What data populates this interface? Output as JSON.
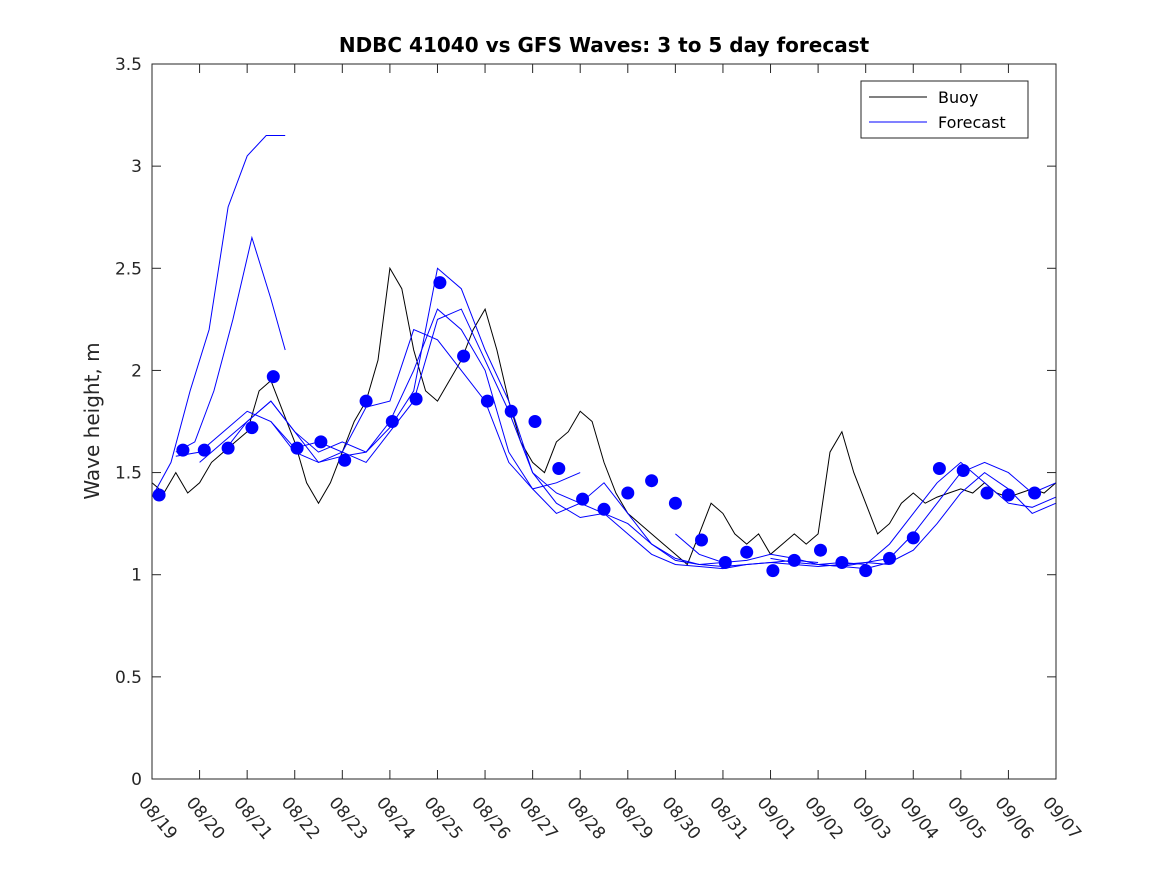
{
  "chart_data": {
    "type": "line",
    "title": "NDBC 41040 vs GFS Waves: 3 to 5 day forecast",
    "xlabel": "",
    "ylabel": "Wave height, m",
    "xlim": [
      0,
      19
    ],
    "ylim": [
      0,
      3.5
    ],
    "yticks": [
      0,
      0.5,
      1,
      1.5,
      2,
      2.5,
      3,
      3.5
    ],
    "ytick_labels": [
      "0",
      "0.5",
      "1",
      "1.5",
      "2",
      "2.5",
      "3",
      "3.5"
    ],
    "xtick_labels": [
      "08/19",
      "08/20",
      "08/21",
      "08/22",
      "08/23",
      "08/24",
      "08/25",
      "08/26",
      "08/27",
      "08/28",
      "08/29",
      "08/30",
      "08/31",
      "09/01",
      "09/02",
      "09/03",
      "09/04",
      "09/05",
      "09/06",
      "09/07"
    ],
    "legend": {
      "position": "top-right",
      "entries": [
        {
          "name": "Buoy",
          "color": "#000000"
        },
        {
          "name": "Forecast",
          "color": "#0000ff"
        }
      ]
    },
    "colors": {
      "buoy": "#000000",
      "forecast": "#0000ff",
      "axis": "#262626"
    },
    "buoy": {
      "name": "Buoy",
      "x": [
        0,
        0.25,
        0.5,
        0.75,
        1,
        1.25,
        1.5,
        1.75,
        2,
        2.25,
        2.5,
        2.75,
        3,
        3.25,
        3.5,
        3.75,
        4,
        4.25,
        4.5,
        4.75,
        5,
        5.25,
        5.5,
        5.75,
        6,
        6.25,
        6.5,
        6.75,
        7,
        7.25,
        7.5,
        7.75,
        8,
        8.25,
        8.5,
        8.75,
        9,
        9.25,
        9.5,
        9.75,
        10,
        10.25,
        10.5,
        10.75,
        11,
        11.25,
        11.5,
        11.75,
        12,
        12.25,
        12.5,
        12.75,
        13,
        13.25,
        13.5,
        13.75,
        14,
        14.25,
        14.5,
        14.75,
        15,
        15.25,
        15.5,
        15.75,
        16,
        16.25,
        16.5,
        16.75,
        17,
        17.25,
        17.5,
        17.75,
        18,
        18.25,
        18.5,
        18.75,
        19
      ],
      "y": [
        1.45,
        1.4,
        1.5,
        1.4,
        1.45,
        1.55,
        1.6,
        1.65,
        1.7,
        1.9,
        1.95,
        1.8,
        1.65,
        1.45,
        1.35,
        1.45,
        1.6,
        1.75,
        1.85,
        2.05,
        2.5,
        2.4,
        2.1,
        1.9,
        1.85,
        1.95,
        2.05,
        2.2,
        2.3,
        2.1,
        1.85,
        1.65,
        1.55,
        1.5,
        1.65,
        1.7,
        1.8,
        1.75,
        1.55,
        1.4,
        1.3,
        1.25,
        1.2,
        1.15,
        1.1,
        1.05,
        1.2,
        1.35,
        1.3,
        1.2,
        1.15,
        1.2,
        1.1,
        1.15,
        1.2,
        1.15,
        1.2,
        1.6,
        1.7,
        1.5,
        1.35,
        1.2,
        1.25,
        1.35,
        1.4,
        1.35,
        1.38,
        1.4,
        1.42,
        1.4,
        1.45,
        1.4,
        1.38,
        1.4,
        1.42,
        1.4,
        1.45
      ]
    },
    "forecast_series": [
      {
        "name": "Forecast",
        "x": [
          0,
          0.4,
          0.8,
          1.2,
          1.6,
          2,
          2.4,
          2.8
        ],
        "y": [
          1.38,
          1.55,
          1.9,
          2.2,
          2.8,
          3.05,
          3.15,
          3.15
        ]
      },
      {
        "name": "Forecast",
        "x": [
          0.5,
          0.9,
          1.3,
          1.7,
          2.1,
          2.5,
          2.8
        ],
        "y": [
          1.6,
          1.65,
          1.9,
          2.25,
          2.65,
          2.35,
          2.1
        ]
      },
      {
        "name": "Forecast",
        "x": [
          0.5,
          1,
          1.5,
          2,
          2.5,
          3,
          3.5,
          4,
          4.5,
          5,
          5.5,
          6,
          6.5,
          7,
          7.5,
          8,
          8.5,
          9
        ],
        "y": [
          1.58,
          1.6,
          1.7,
          1.8,
          1.75,
          1.62,
          1.65,
          1.6,
          1.82,
          1.85,
          2.2,
          2.15,
          2.0,
          1.85,
          1.55,
          1.42,
          1.45,
          1.5
        ]
      },
      {
        "name": "Forecast",
        "x": [
          1,
          1.5,
          2,
          2.5,
          3,
          3.5,
          4,
          4.5,
          5,
          5.5,
          6,
          6.5,
          7,
          7.5,
          8,
          8.5,
          9,
          9.5,
          10,
          10.5,
          11,
          11.5,
          12
        ],
        "y": [
          1.55,
          1.65,
          1.75,
          1.85,
          1.7,
          1.6,
          1.65,
          1.6,
          1.75,
          2.0,
          2.3,
          2.2,
          2.0,
          1.6,
          1.42,
          1.3,
          1.35,
          1.45,
          1.3,
          1.15,
          1.08,
          1.05,
          1.06
        ]
      },
      {
        "name": "Forecast",
        "x": [
          1.5,
          2,
          2.5,
          3,
          3.5,
          4,
          4.5,
          5,
          5.5,
          6,
          6.5,
          7,
          7.5,
          8,
          8.5,
          9,
          9.5,
          10,
          10.5,
          11,
          11.5,
          12,
          12.5,
          13,
          13.5,
          14
        ],
        "y": [
          1.6,
          1.75,
          1.85,
          1.7,
          1.55,
          1.6,
          1.55,
          1.7,
          1.85,
          2.25,
          2.3,
          2.05,
          1.8,
          1.5,
          1.4,
          1.35,
          1.3,
          1.25,
          1.15,
          1.07,
          1.05,
          1.04,
          1.05,
          1.06,
          1.07,
          1.06
        ]
      },
      {
        "name": "Forecast",
        "x": [
          2.5,
          3,
          3.5,
          4,
          4.5,
          5,
          5.5,
          6,
          6.5,
          7,
          7.5,
          8,
          8.5,
          9,
          9.5,
          10,
          10.5,
          11,
          11.5,
          12,
          12.5,
          13,
          13.5,
          14,
          14.5,
          15,
          15.5
        ],
        "y": [
          1.75,
          1.6,
          1.55,
          1.58,
          1.6,
          1.72,
          1.9,
          2.5,
          2.4,
          2.1,
          1.85,
          1.5,
          1.35,
          1.28,
          1.3,
          1.2,
          1.1,
          1.05,
          1.04,
          1.03,
          1.05,
          1.06,
          1.05,
          1.04,
          1.05,
          1.06,
          1.05
        ]
      },
      {
        "name": "Forecast",
        "x": [
          11,
          11.5,
          12,
          12.5,
          13,
          13.5,
          14,
          14.5,
          15,
          15.5,
          16,
          16.5,
          17,
          17.5,
          18,
          18.5,
          19
        ],
        "y": [
          1.2,
          1.1,
          1.06,
          1.07,
          1.1,
          1.08,
          1.05,
          1.06,
          1.05,
          1.15,
          1.3,
          1.45,
          1.55,
          1.45,
          1.35,
          1.33,
          1.38
        ]
      },
      {
        "name": "Forecast",
        "x": [
          13,
          13.5,
          14,
          14.5,
          15,
          15.5,
          16,
          16.5,
          17,
          17.5,
          18,
          18.5,
          19
        ],
        "y": [
          1.08,
          1.06,
          1.05,
          1.04,
          1.06,
          1.08,
          1.2,
          1.35,
          1.5,
          1.55,
          1.5,
          1.4,
          1.45
        ]
      },
      {
        "name": "Forecast",
        "x": [
          14,
          14.5,
          15,
          15.5,
          16,
          16.5,
          17,
          17.5,
          18,
          18.5,
          19
        ],
        "y": [
          1.05,
          1.04,
          1.03,
          1.06,
          1.12,
          1.25,
          1.4,
          1.5,
          1.42,
          1.3,
          1.35
        ]
      }
    ],
    "forecast_points": {
      "name": "Forecast",
      "x": [
        0.15,
        0.65,
        1.1,
        1.6,
        2.1,
        2.55,
        3.05,
        3.55,
        4.05,
        4.5,
        5.05,
        5.55,
        6.05,
        6.55,
        7.05,
        7.55,
        8.05,
        8.55,
        9.05,
        9.5,
        10,
        10.5,
        11,
        11.55,
        12.05,
        12.5,
        13.05,
        13.5,
        14.05,
        14.5,
        15,
        15.5,
        16,
        16.55,
        17.05,
        17.55,
        18,
        18.55
      ],
      "y": [
        1.39,
        1.61,
        1.61,
        1.62,
        1.72,
        1.97,
        1.62,
        1.65,
        1.56,
        1.85,
        1.75,
        1.86,
        2.43,
        2.07,
        1.85,
        1.8,
        1.75,
        1.52,
        1.37,
        1.32,
        1.4,
        1.46,
        1.35,
        1.17,
        1.06,
        1.11,
        1.02,
        1.07,
        1.12,
        1.06,
        1.02,
        1.08,
        1.18,
        1.52,
        1.51,
        1.4,
        1.39,
        1.4
      ]
    }
  }
}
